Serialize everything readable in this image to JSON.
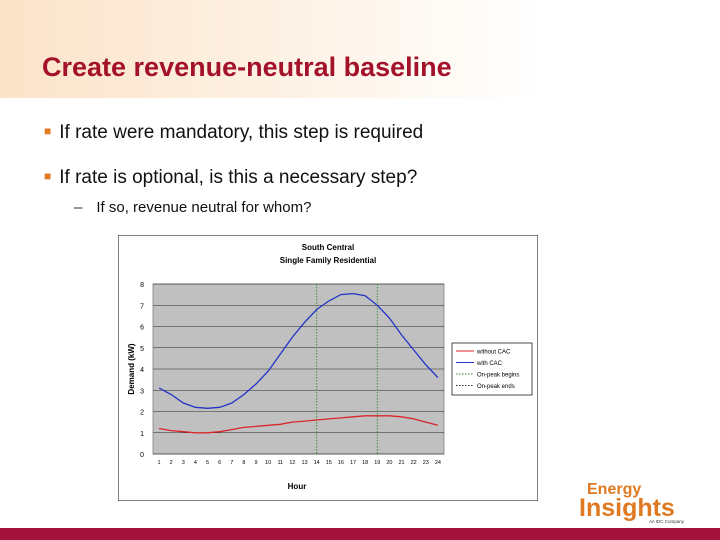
{
  "slide": {
    "title": "Create revenue-neutral baseline",
    "bullets": [
      "If rate were mandatory, this step is required",
      "If rate is optional, is this a necessary step?"
    ],
    "sub_bullet": "If so, revenue neutral for whom?"
  },
  "logo": {
    "line1": "Energy",
    "line2": "Insights",
    "tagline": "An IDC Company"
  },
  "colors": {
    "title": "#a3122a",
    "bullet_mark": "#e07a22",
    "bottom_bar": "#a3123a",
    "without_cac": "#d9262b",
    "with_cac": "#2233c8",
    "onpeak_lines": "#2e8b2e"
  },
  "chart_data": {
    "type": "line",
    "title": "South Central",
    "subtitle": "Single Family Residential",
    "xlabel": "Hour",
    "ylabel": "Demand (kW)",
    "x": [
      1,
      2,
      3,
      4,
      5,
      6,
      7,
      8,
      9,
      10,
      11,
      12,
      13,
      14,
      15,
      16,
      17,
      18,
      19,
      20,
      21,
      22,
      23,
      24
    ],
    "xticks": [
      "1",
      "2",
      "3",
      "4",
      "5",
      "6",
      "7",
      "8",
      "9",
      "10",
      "11",
      "12",
      "13",
      "14",
      "15",
      "16",
      "17",
      "18",
      "19",
      "20",
      "21",
      "22",
      "23",
      "24"
    ],
    "ylim": [
      0,
      8
    ],
    "yticks": [
      "0",
      "1",
      "2",
      "3",
      "4",
      "5",
      "6",
      "7",
      "8"
    ],
    "grid": true,
    "legend_position": "right",
    "series": [
      {
        "name": "without CAC",
        "color": "#d9262b",
        "values": [
          1.2,
          1.1,
          1.05,
          1.0,
          1.0,
          1.05,
          1.15,
          1.25,
          1.3,
          1.35,
          1.4,
          1.5,
          1.55,
          1.6,
          1.65,
          1.7,
          1.75,
          1.8,
          1.8,
          1.8,
          1.75,
          1.65,
          1.5,
          1.35
        ]
      },
      {
        "name": "with CAC",
        "color": "#2233c8",
        "values": [
          3.1,
          2.8,
          2.4,
          2.2,
          2.15,
          2.2,
          2.4,
          2.8,
          3.3,
          3.9,
          4.7,
          5.5,
          6.2,
          6.8,
          7.2,
          7.5,
          7.55,
          7.45,
          7.0,
          6.4,
          5.6,
          4.9,
          4.2,
          3.6
        ]
      }
    ],
    "vlines": [
      {
        "name": "On-peak begins",
        "x": 14
      },
      {
        "name": "On-peak ends",
        "x": 19
      }
    ]
  }
}
